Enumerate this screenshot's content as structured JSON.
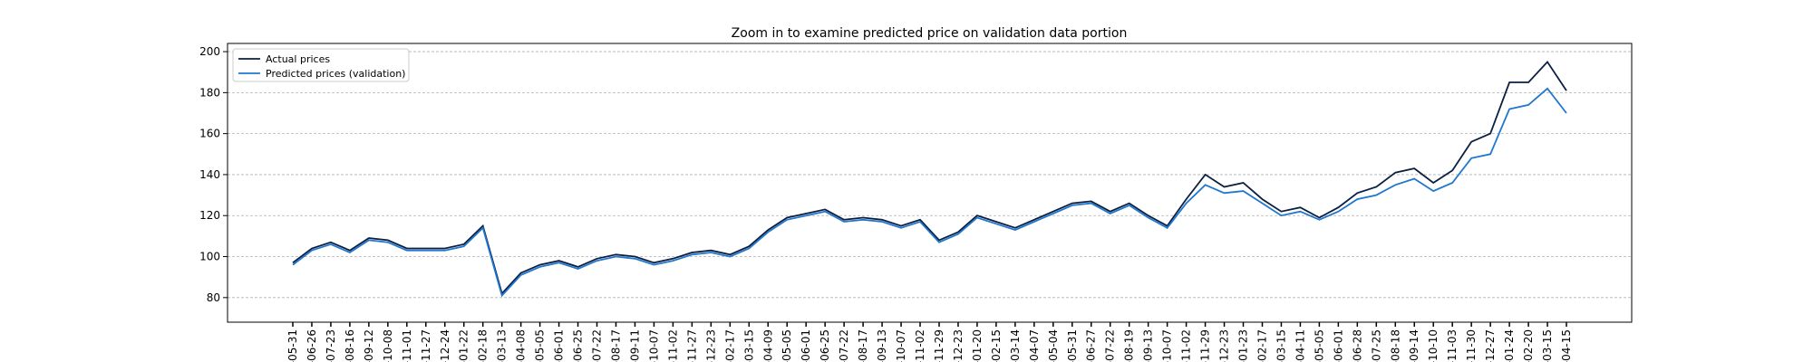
{
  "chart_data": {
    "type": "line",
    "title": "Zoom in to examine predicted price on validation data portion",
    "categories": [
      "-05-31",
      "-06-26",
      "-07-23",
      "-08-16",
      "-09-12",
      "-10-08",
      "-11-01",
      "-11-27",
      "-12-24",
      "-01-22",
      "-02-18",
      "-03-13",
      "-04-08",
      "-05-05",
      "-06-01",
      "-06-25",
      "-07-22",
      "-08-17",
      "-09-11",
      "-10-07",
      "-11-02",
      "-11-27",
      "-12-23",
      "-02-17",
      "-03-15",
      "-04-09",
      "-05-05",
      "-06-01",
      "-06-25",
      "-07-22",
      "-08-17",
      "-09-13",
      "-10-07",
      "-11-02",
      "-11-29",
      "-12-23",
      "-01-20",
      "-02-15",
      "-03-14",
      "-04-07",
      "-05-04",
      "-05-31",
      "-06-27",
      "-07-22",
      "-08-19",
      "-09-13",
      "-10-07",
      "-11-02",
      "-11-29",
      "-12-23",
      "-01-23",
      "-02-17",
      "-03-15",
      "-04-11",
      "-05-05",
      "-06-01",
      "-06-28",
      "-07-25",
      "-08-18",
      "-09-14",
      "-10-10",
      "-11-03",
      "-11-30",
      "-12-27",
      "-01-24",
      "-02-20",
      "-03-15",
      "-04-15"
    ],
    "series": [
      {
        "name": "Actual prices",
        "color": "#0c1f3f",
        "values": [
          97,
          104,
          107,
          103,
          109,
          108,
          104,
          104,
          104,
          106,
          115,
          82,
          92,
          96,
          98,
          95,
          99,
          101,
          100,
          97,
          99,
          102,
          103,
          101,
          105,
          113,
          119,
          121,
          123,
          118,
          119,
          118,
          115,
          118,
          108,
          112,
          120,
          117,
          114,
          118,
          122,
          126,
          127,
          122,
          126,
          120,
          115,
          128,
          140,
          134,
          136,
          128,
          122,
          124,
          119,
          124,
          131,
          134,
          141,
          143,
          136,
          142,
          156,
          160,
          185,
          185,
          195,
          181
        ]
      },
      {
        "name": "Predicted prices (validation)",
        "color": "#1f77d0",
        "values": [
          96,
          103,
          106,
          102,
          108,
          107,
          103,
          103,
          103,
          105,
          114,
          81,
          91,
          95,
          97,
          94,
          98,
          100,
          99,
          96,
          98,
          101,
          102,
          100,
          104,
          112,
          118,
          120,
          122,
          117,
          118,
          117,
          114,
          117,
          107,
          111,
          119,
          116,
          113,
          117,
          121,
          125,
          126,
          121,
          125,
          119,
          114,
          126,
          135,
          131,
          132,
          126,
          120,
          122,
          118,
          122,
          128,
          130,
          135,
          138,
          132,
          136,
          148,
          150,
          172,
          174,
          182,
          170
        ]
      }
    ],
    "ylim": [
      68,
      204
    ],
    "yticks": [
      80,
      100,
      120,
      140,
      160,
      180,
      200
    ],
    "grid": true,
    "legend": "upper left"
  }
}
